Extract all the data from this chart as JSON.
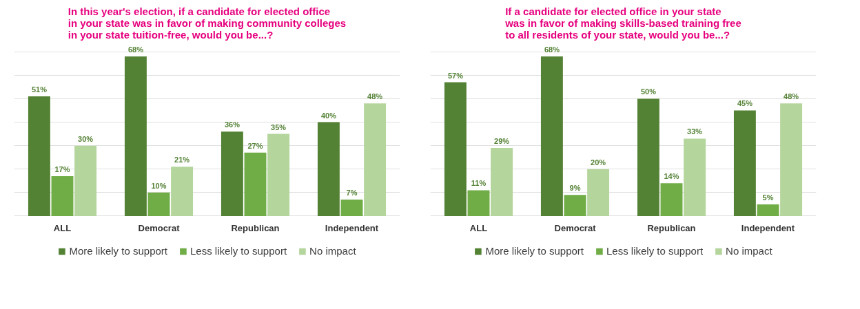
{
  "chart_data": [
    {
      "type": "bar",
      "title": "In this year's election, if a candidate for elected office\nin your state was in favor of making community colleges\nin your state tuition-free, would you be...?",
      "categories": [
        "ALL",
        "Democrat",
        "Republican",
        "Independent"
      ],
      "yticks": [
        {
          "value": 0,
          "label": null
        },
        {
          "value": 10,
          "label": null
        },
        {
          "value": 20,
          "label": null
        },
        {
          "value": 30,
          "label": null
        },
        {
          "value": 40,
          "label": null
        },
        {
          "value": 50,
          "label": null
        },
        {
          "value": 60,
          "label": null
        },
        {
          "value": 70,
          "label": null
        }
      ],
      "tick_labels": "x",
      "grid": "y",
      "legend": "bottom",
      "series": [
        {
          "name": "More likely to support",
          "color": "#548235",
          "values": [
            51,
            68,
            36,
            40
          ],
          "value_labels": [
            "51%",
            "68%",
            "36%",
            "40%"
          ]
        },
        {
          "name": "Less likely to support",
          "color": "#70ad47",
          "values": [
            17,
            10,
            27,
            7
          ],
          "value_labels": [
            "17%",
            "10%",
            "27%",
            "7%"
          ]
        },
        {
          "name": "No impact",
          "color": "#b4d59c",
          "values": [
            30,
            21,
            35,
            48
          ],
          "value_labels": [
            "30%",
            "21%",
            "35%",
            "48%"
          ]
        }
      ]
    },
    {
      "type": "bar",
      "title": "If a candidate for elected office in your state\nwas in favor of making skills-based training free\nto all residents of your state, would you be...?",
      "categories": [
        "ALL",
        "Democrat",
        "Republican",
        "Independent"
      ],
      "yticks": [
        {
          "value": 0,
          "label": null
        },
        {
          "value": 10,
          "label": null
        },
        {
          "value": 20,
          "label": null
        },
        {
          "value": 30,
          "label": null
        },
        {
          "value": 40,
          "label": null
        },
        {
          "value": 50,
          "label": null
        },
        {
          "value": 60,
          "label": null
        },
        {
          "value": 70,
          "label": null
        }
      ],
      "tick_labels": "x",
      "grid": "y",
      "legend": "bottom",
      "series": [
        {
          "name": "More likely to support",
          "color": "#548235",
          "values": [
            57,
            68,
            50,
            45
          ],
          "value_labels": [
            "57%",
            "68%",
            "50%",
            "45%"
          ]
        },
        {
          "name": "Less likely to support",
          "color": "#70ad47",
          "values": [
            11,
            9,
            14,
            5
          ],
          "value_labels": [
            "11%",
            "9%",
            "14%",
            "5%"
          ]
        },
        {
          "name": "No impact",
          "color": "#b4d59c",
          "values": [
            29,
            20,
            33,
            48
          ],
          "value_labels": [
            "29%",
            "20%",
            "33%",
            "48%"
          ]
        }
      ]
    }
  ]
}
